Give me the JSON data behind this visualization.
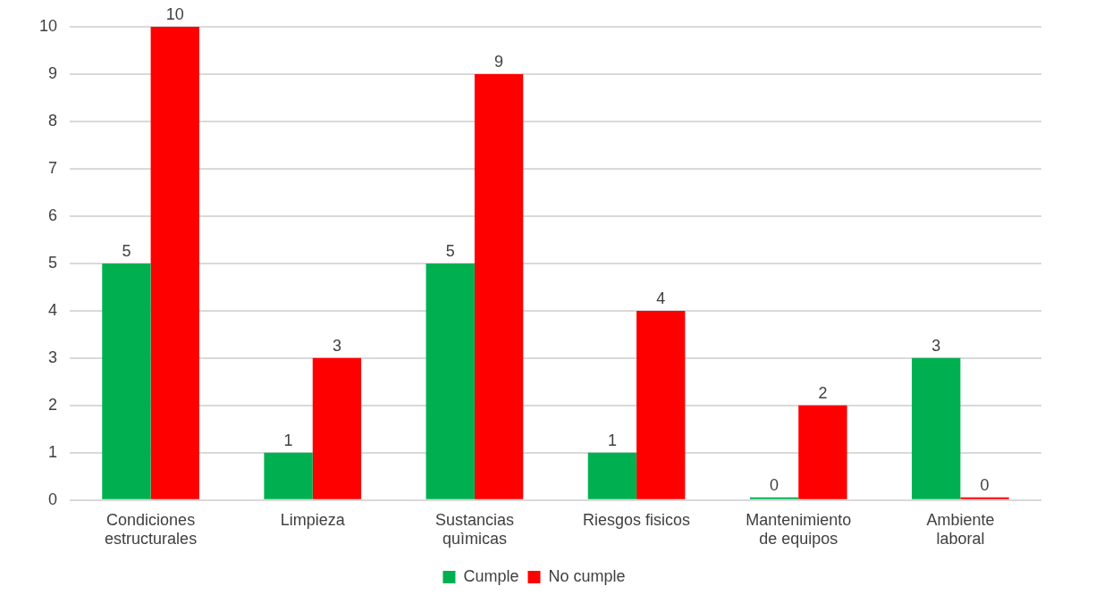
{
  "chart_data": {
    "type": "bar",
    "categories": [
      "Condiciones estructurales",
      "Limpieza",
      "Sustancias quìmicas",
      "Riesgos fisicos",
      "Mantenimiento de equipos",
      "Ambiente laboral"
    ],
    "series": [
      {
        "name": "Cumple",
        "color": "#00b050",
        "values": [
          5,
          1,
          5,
          1,
          0,
          3
        ]
      },
      {
        "name": "No cumple",
        "color": "#ff0000",
        "values": [
          10,
          3,
          9,
          4,
          2,
          0
        ]
      }
    ],
    "ylim": [
      0,
      10
    ],
    "yticks": [
      0,
      1,
      2,
      3,
      4,
      5,
      6,
      7,
      8,
      9,
      10
    ],
    "grid": "y",
    "legend": "bottom",
    "data_labels": true
  }
}
